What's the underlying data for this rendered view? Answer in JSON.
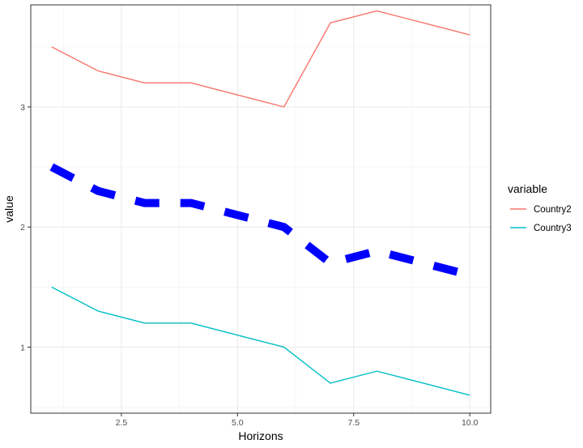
{
  "chart_data": {
    "type": "line",
    "title": "",
    "xlabel": "Horizons",
    "ylabel": "value",
    "x": [
      1,
      2,
      3,
      4,
      5,
      6,
      7,
      8,
      9,
      10
    ],
    "xlim": [
      0.55,
      10.45
    ],
    "ylim": [
      0.45,
      3.85
    ],
    "xticks": [
      2.5,
      5.0,
      7.5,
      10.0
    ],
    "xtick_labels": [
      "2.5",
      "5.0",
      "7.5",
      "10.0"
    ],
    "yticks": [
      1,
      2,
      3
    ],
    "ytick_labels": [
      "1",
      "2",
      "3"
    ],
    "grid": true,
    "legend": {
      "title": "variable",
      "position": "right"
    },
    "series": [
      {
        "name": "Country2",
        "color": "#F8766D",
        "style": "solid",
        "values": [
          3.5,
          3.3,
          3.2,
          3.2,
          3.1,
          3.0,
          3.7,
          3.8,
          3.7,
          3.6
        ]
      },
      {
        "name": "Country3",
        "color": "#00BFC4",
        "style": "solid",
        "values": [
          1.5,
          1.3,
          1.2,
          1.2,
          1.1,
          1.0,
          0.7,
          0.8,
          0.7,
          0.6
        ]
      },
      {
        "color": "#0000FF",
        "style": "dashed-thick",
        "values": [
          2.5,
          2.3,
          2.2,
          2.2,
          2.1,
          2.0,
          1.7,
          1.8,
          1.7,
          1.6
        ]
      }
    ]
  }
}
